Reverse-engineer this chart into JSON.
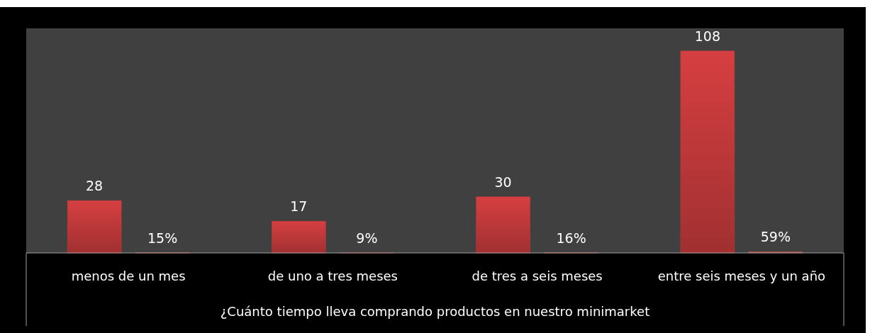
{
  "chart_data": {
    "type": "bar",
    "xlabel": "¿Cuánto tiempo lleva comprando productos en nuestro minimarket",
    "categories": [
      "menos de un mes",
      "de uno a tres meses",
      "de tres a seis meses",
      "entre seis meses y un año"
    ],
    "series": [
      {
        "color": "#c0393a",
        "values": [
          28,
          17,
          30,
          108
        ],
        "value_labels": [
          "28",
          "17",
          "30",
          "108"
        ]
      },
      {
        "color": "#c0504d",
        "values": [
          0.15,
          0.09,
          0.16,
          0.59
        ],
        "value_labels": [
          "15%",
          "9%",
          "16%",
          "59%"
        ]
      }
    ]
  }
}
